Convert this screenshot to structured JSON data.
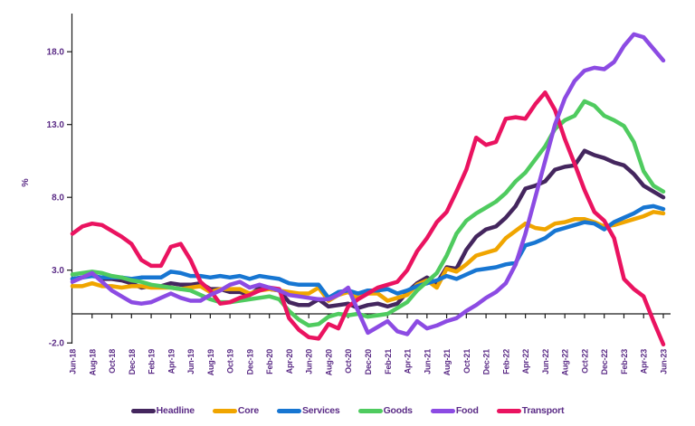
{
  "chart_data": {
    "type": "line",
    "title": "",
    "xlabel": "",
    "ylabel": "%",
    "grid": false,
    "legend_position": "bottom",
    "axis_text_color": "#5B2C86",
    "axis_line_color": "#1a1a1a",
    "ylim": [
      -2.0,
      18.0
    ],
    "y_ticks": {
      "values": [
        -2,
        3,
        8,
        13,
        18
      ],
      "labels": [
        "-2.0",
        "3.0",
        "8.0",
        "13.0",
        "18.0"
      ]
    },
    "x": [
      "Jun-18",
      "Jul-18",
      "Aug-18",
      "Sep-18",
      "Oct-18",
      "Nov-18",
      "Dec-18",
      "Jan-19",
      "Feb-19",
      "Mar-19",
      "Apr-19",
      "May-19",
      "Jun-19",
      "Jul-19",
      "Aug-19",
      "Sep-19",
      "Oct-19",
      "Nov-19",
      "Dec-19",
      "Jan-20",
      "Feb-20",
      "Mar-20",
      "Apr-20",
      "May-20",
      "Jun-20",
      "Jul-20",
      "Aug-20",
      "Sep-20",
      "Oct-20",
      "Nov-20",
      "Dec-20",
      "Jan-21",
      "Feb-21",
      "Mar-21",
      "Apr-21",
      "May-21",
      "Jun-21",
      "Jul-21",
      "Aug-21",
      "Sep-21",
      "Oct-21",
      "Nov-21",
      "Dec-21",
      "Jan-22",
      "Feb-22",
      "Mar-22",
      "Apr-22",
      "May-22",
      "Jun-22",
      "Jul-22",
      "Aug-22",
      "Sep-22",
      "Oct-22",
      "Nov-22",
      "Dec-22",
      "Jan-23",
      "Feb-23",
      "Mar-23",
      "Apr-23",
      "May-23",
      "Jun-23"
    ],
    "x_axis_shown_labels": [
      "Jun-18",
      "Aug-18",
      "Oct-18",
      "Dec-18",
      "Feb-19",
      "Apr-19",
      "Jun-19",
      "Aug-19",
      "Oct-19",
      "Dec-19",
      "Feb-20",
      "Apr-20",
      "Jun-20",
      "Aug-20",
      "Oct-20",
      "Dec-20",
      "Feb-21",
      "Apr-21",
      "Jun-21",
      "Aug-21",
      "Oct-21",
      "Dec-21",
      "Feb-22",
      "Apr-22",
      "Jun-22",
      "Aug-22",
      "Oct-22",
      "Dec-22",
      "Feb-23",
      "Apr-23",
      "Jun-23"
    ],
    "series": [
      {
        "name": "Headline",
        "color": "#44265E",
        "values": [
          2.4,
          2.5,
          2.7,
          2.4,
          2.4,
          2.3,
          2.1,
          1.8,
          1.9,
          1.9,
          2.1,
          2.0,
          2.0,
          2.1,
          1.7,
          1.7,
          1.5,
          1.5,
          1.3,
          1.8,
          1.7,
          1.6,
          0.8,
          0.6,
          0.6,
          1.0,
          0.5,
          0.6,
          0.7,
          0.4,
          0.6,
          0.7,
          0.5,
          0.7,
          1.5,
          2.1,
          2.5,
          2.1,
          3.2,
          3.1,
          4.4,
          5.3,
          5.8,
          6.0,
          6.6,
          7.4,
          8.6,
          8.8,
          9.1,
          9.9,
          10.1,
          10.2,
          11.2,
          10.9,
          10.7,
          10.4,
          10.2,
          9.6,
          8.8,
          8.4,
          8.0
        ]
      },
      {
        "name": "Core",
        "color": "#F0A500",
        "values": [
          1.9,
          1.9,
          2.1,
          1.9,
          1.9,
          1.8,
          1.9,
          1.9,
          1.8,
          1.8,
          1.8,
          1.7,
          1.8,
          1.9,
          1.5,
          1.7,
          1.7,
          1.7,
          1.4,
          1.6,
          1.7,
          1.6,
          1.5,
          1.4,
          1.4,
          1.8,
          0.9,
          1.3,
          1.5,
          1.1,
          1.4,
          1.4,
          0.9,
          1.1,
          1.3,
          2.0,
          2.3,
          1.8,
          3.1,
          2.9,
          3.4,
          4.0,
          4.2,
          4.4,
          5.2,
          5.7,
          6.2,
          5.9,
          5.8,
          6.2,
          6.3,
          6.5,
          6.5,
          6.3,
          6.0,
          6.1,
          6.3,
          6.5,
          6.7,
          7.0,
          6.9
        ]
      },
      {
        "name": "Services",
        "color": "#1776D2",
        "values": [
          2.4,
          2.5,
          2.6,
          2.5,
          2.5,
          2.5,
          2.4,
          2.5,
          2.5,
          2.5,
          2.9,
          2.8,
          2.6,
          2.6,
          2.5,
          2.6,
          2.5,
          2.6,
          2.4,
          2.6,
          2.5,
          2.4,
          2.1,
          2.0,
          2.0,
          2.0,
          1.1,
          1.5,
          1.6,
          1.4,
          1.6,
          1.6,
          1.7,
          1.4,
          1.6,
          1.9,
          2.1,
          2.3,
          2.6,
          2.4,
          2.7,
          3.0,
          3.1,
          3.2,
          3.4,
          3.5,
          4.7,
          4.9,
          5.2,
          5.7,
          5.9,
          6.1,
          6.3,
          6.2,
          5.8,
          6.3,
          6.6,
          6.9,
          7.3,
          7.4,
          7.2
        ]
      },
      {
        "name": "Goods",
        "color": "#4FCB5F",
        "values": [
          2.7,
          2.8,
          2.9,
          2.8,
          2.6,
          2.5,
          2.3,
          2.2,
          2.0,
          1.9,
          1.8,
          1.7,
          1.6,
          1.3,
          1.0,
          0.8,
          0.8,
          0.9,
          1.0,
          1.1,
          1.2,
          1.0,
          0.2,
          -0.4,
          -0.8,
          -0.7,
          -0.2,
          0.0,
          -0.1,
          0.0,
          -0.2,
          -0.1,
          0.0,
          0.4,
          0.8,
          1.6,
          2.2,
          2.8,
          4.0,
          5.5,
          6.4,
          6.9,
          7.3,
          7.7,
          8.3,
          9.1,
          9.7,
          10.6,
          11.5,
          12.7,
          13.3,
          13.6,
          14.6,
          14.3,
          13.6,
          13.3,
          12.9,
          11.8,
          9.8,
          8.8,
          8.4
        ]
      },
      {
        "name": "Food",
        "color": "#8C4BE3",
        "values": [
          2.2,
          2.5,
          2.8,
          2.2,
          1.6,
          1.2,
          0.8,
          0.7,
          0.8,
          1.1,
          1.4,
          1.1,
          0.9,
          0.9,
          1.3,
          1.6,
          2.0,
          2.2,
          1.8,
          2.0,
          1.8,
          1.6,
          1.3,
          1.2,
          1.1,
          1.0,
          1.0,
          1.3,
          1.8,
          0.2,
          -1.3,
          -0.9,
          -0.5,
          -1.2,
          -1.4,
          -0.5,
          -1.0,
          -0.8,
          -0.5,
          -0.3,
          0.2,
          0.6,
          1.1,
          1.5,
          2.1,
          3.4,
          5.5,
          8.0,
          10.5,
          13.0,
          14.8,
          16.0,
          16.7,
          16.9,
          16.8,
          17.3,
          18.4,
          19.2,
          19.0,
          18.2,
          17.4
        ]
      },
      {
        "name": "Transport",
        "color": "#EA1360",
        "values": [
          5.5,
          6.0,
          6.2,
          6.1,
          5.7,
          5.3,
          4.8,
          3.7,
          3.3,
          3.3,
          4.6,
          4.8,
          3.7,
          2.2,
          1.6,
          0.7,
          0.8,
          1.1,
          1.3,
          1.6,
          1.8,
          1.7,
          -0.3,
          -1.1,
          -1.6,
          -1.7,
          -0.7,
          -1.0,
          0.5,
          1.0,
          1.4,
          1.8,
          2.0,
          2.2,
          3.0,
          4.3,
          5.2,
          6.3,
          7.0,
          8.4,
          9.9,
          12.1,
          11.6,
          11.8,
          13.4,
          13.5,
          13.4,
          14.4,
          15.2,
          14.0,
          12.0,
          10.3,
          8.5,
          7.0,
          6.4,
          5.2,
          2.4,
          1.7,
          1.2,
          -0.5,
          -2.1
        ]
      }
    ]
  }
}
